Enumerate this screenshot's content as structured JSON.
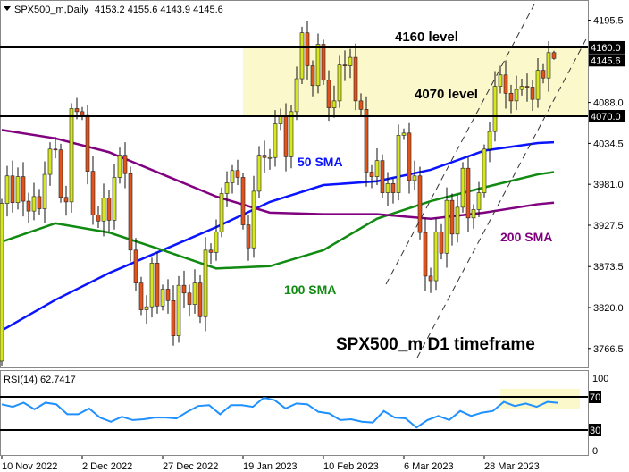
{
  "header": {
    "symbol": "SPX500_m,Daily",
    "ohlc": "4153.2 4155.6 4143.9 4145.6"
  },
  "chart_data": {
    "type": "candlestick",
    "title": "SPX500_m D1 timeframe",
    "x_tick_labels": [
      "10 Nov 2022",
      "2 Dec 2022",
      "27 Dec 2022",
      "19 Jan 2023",
      "10 Feb 2023",
      "6 Mar 2023",
      "28 Mar 2023"
    ],
    "y_tick_labels": [
      "4195.5",
      "4088.0",
      "4034.5",
      "3981.0",
      "3927.5",
      "3873.5",
      "3820.0",
      "3766.5"
    ],
    "ylim": [
      3740,
      4215
    ],
    "first_open": 3750,
    "closes": [
      3956,
      3992,
      3957,
      3991,
      3959,
      3946,
      3965,
      3949,
      3994,
      4027,
      4026,
      3964,
      3958,
      4080,
      4076,
      4071,
      3998,
      3941,
      3933,
      3963,
      3934,
      3990,
      4019,
      3995,
      3895,
      3852,
      3817,
      3821,
      3878,
      3822,
      3844,
      3829,
      3783,
      3849,
      3839,
      3824,
      3852,
      3808,
      3895,
      3892,
      3919,
      3969,
      3983,
      3999,
      3990,
      3928,
      3898,
      3972,
      4019,
      4016,
      4016,
      4060,
      4070,
      4017,
      4076,
      4119,
      4179,
      4136,
      4110,
      4164,
      4117,
      4081,
      4090,
      4137,
      4136,
      4147,
      4090,
      4079,
      3997,
      3991,
      4012,
      3970,
      3982,
      3970,
      4045,
      4048,
      3986,
      3992,
      3918,
      3861,
      3855,
      3919,
      3891,
      3960,
      3916,
      3951,
      4002,
      3937,
      3948,
      3970,
      4027,
      4050,
      4109,
      4124,
      4100,
      4090,
      4105,
      4109,
      4108,
      4092,
      4130,
      4120,
      4153.2,
      4145.6
    ],
    "last_bar": {
      "open": 4153.2,
      "high": 4155.6,
      "low": 4143.9,
      "close": 4145.6
    },
    "levels": [
      {
        "price": 4160.0,
        "label": "4160.0",
        "annotation": "4160 level"
      },
      {
        "price": 4070.0,
        "label": "4070.0",
        "annotation": "4070 level"
      }
    ],
    "current_price_label": "4145.6",
    "moving_averages": [
      {
        "name": "50 SMA",
        "color": "#0a14ff",
        "values": [
          3790,
          3830,
          3865,
          3895,
          3925,
          3958,
          3980,
          3985,
          4000,
          4025,
          4035,
          4036
        ]
      },
      {
        "name": "100 SMA",
        "color": "#118a11",
        "values": [
          3906,
          3930,
          3918,
          3895,
          3871,
          3874,
          3895,
          3936,
          3959,
          3977,
          3994,
          3997
        ]
      },
      {
        "name": "200 SMA",
        "color": "#800080",
        "values": [
          4052,
          4041,
          4023,
          3994,
          3965,
          3944,
          3942,
          3942,
          3936,
          3944,
          3955,
          3957
        ]
      }
    ],
    "colors": {
      "bull": "#d6e620",
      "bear": "#e2531c",
      "zone": "#fbf8cc",
      "rsi": "#1e90ff"
    },
    "rsi": {
      "label": "RSI(14) 62.7417",
      "levels": [
        "70",
        "30"
      ],
      "axis_labels": [
        "100",
        "0"
      ],
      "ylim": [
        0,
        100
      ],
      "values": [
        61,
        58,
        63,
        55,
        63,
        61,
        49,
        49,
        56,
        45,
        40,
        46,
        42,
        43,
        45,
        45,
        44,
        52,
        59,
        60,
        49,
        60,
        60,
        58,
        69,
        66,
        56,
        62,
        61,
        52,
        50,
        42,
        43,
        40,
        39,
        53,
        45,
        44,
        33,
        42,
        47,
        42,
        53,
        47,
        51,
        53,
        64,
        59,
        62,
        58,
        64,
        62.7
      ]
    }
  }
}
